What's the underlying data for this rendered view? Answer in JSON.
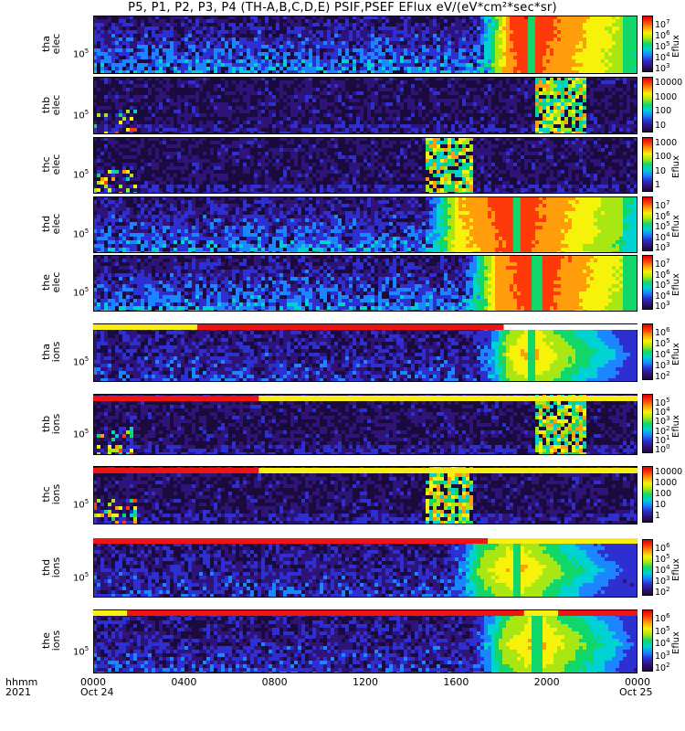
{
  "title": "P5, P1, P2, P3, P4 (TH-A,B,C,D,E) PSIF,PSEF EFlux eV/(eV*cm²*sec*sr)",
  "chart_data": {
    "type": "heatmap",
    "x_axis": {
      "label_row1": "hhmm",
      "label_row2": "2021",
      "ticks": [
        "0000",
        "0400",
        "0800",
        "1200",
        "1600",
        "2000",
        "0000"
      ],
      "dates": [
        "Oct 24",
        "Oct 25"
      ],
      "range_hours": [
        0,
        24
      ]
    },
    "colorscale": [
      "#1b0a3d",
      "#2e1478",
      "#2d2fd0",
      "#1a86ff",
      "#00d2d2",
      "#11d66a",
      "#a8e614",
      "#f7f20a",
      "#ff9d0a",
      "#ff3a0a",
      "#d80000"
    ],
    "panels": [
      {
        "probe": "tha",
        "species": "elec",
        "ytick": "10",
        "ytick_exp": "5",
        "cbar_unit": "Eflux",
        "cbar_ticks": [
          {
            "b": "10",
            "e": "7"
          },
          {
            "b": "10",
            "e": "6"
          },
          {
            "b": "10",
            "e": "5"
          },
          {
            "b": "10",
            "e": "4"
          },
          {
            "b": "10",
            "e": "3"
          }
        ],
        "pattern": "smooth",
        "onset": 16.8,
        "spike": 19.2
      },
      {
        "probe": "thb",
        "species": "elec",
        "ytick": "10",
        "ytick_exp": "5",
        "cbar_unit": "",
        "cbar_ticks": [
          {
            "b": "10000",
            "e": ""
          },
          {
            "b": "1000",
            "e": ""
          },
          {
            "b": "100",
            "e": ""
          },
          {
            "b": "10",
            "e": ""
          }
        ],
        "pattern": "sparse",
        "box_start": 19.4,
        "box_end": 21.6
      },
      {
        "probe": "thc",
        "species": "elec",
        "ytick": "10",
        "ytick_exp": "5",
        "cbar_unit": "Eflux",
        "cbar_ticks": [
          {
            "b": "1000",
            "e": ""
          },
          {
            "b": "100",
            "e": ""
          },
          {
            "b": "10",
            "e": ""
          },
          {
            "b": "1",
            "e": ""
          }
        ],
        "pattern": "sparse",
        "box_start": 14.6,
        "box_end": 16.6
      },
      {
        "probe": "thd",
        "species": "elec",
        "ytick": "10",
        "ytick_exp": "5",
        "cbar_unit": "Eflux",
        "cbar_ticks": [
          {
            "b": "10",
            "e": "7"
          },
          {
            "b": "10",
            "e": "6"
          },
          {
            "b": "10",
            "e": "5"
          },
          {
            "b": "10",
            "e": "4"
          },
          {
            "b": "10",
            "e": "3"
          }
        ],
        "pattern": "smooth",
        "onset": 14.5,
        "spike": 18.6
      },
      {
        "probe": "the",
        "species": "elec",
        "ytick": "10",
        "ytick_exp": "5",
        "cbar_unit": "Eflux",
        "cbar_ticks": [
          {
            "b": "10",
            "e": "7"
          },
          {
            "b": "10",
            "e": "6"
          },
          {
            "b": "10",
            "e": "5"
          },
          {
            "b": "10",
            "e": "4"
          },
          {
            "b": "10",
            "e": "3"
          }
        ],
        "pattern": "smooth",
        "onset": 16.2,
        "spike": 19.5
      },
      {
        "probe": "tha",
        "species": "ions",
        "ytick": "10",
        "ytick_exp": "5",
        "cbar_unit": "Eflux",
        "cbar_ticks": [
          {
            "b": "10",
            "e": "6"
          },
          {
            "b": "10",
            "e": "5"
          },
          {
            "b": "10",
            "e": "4"
          },
          {
            "b": "10",
            "e": "3"
          },
          {
            "b": "10",
            "e": "2"
          }
        ],
        "pattern": "ion",
        "onset": 16.8,
        "spike": 19.2
      },
      {
        "probe": "thb",
        "species": "ions",
        "ytick": "10",
        "ytick_exp": "5",
        "cbar_unit": "Eflux",
        "cbar_ticks": [
          {
            "b": "10",
            "e": "5"
          },
          {
            "b": "10",
            "e": "4"
          },
          {
            "b": "10",
            "e": "3"
          },
          {
            "b": "10",
            "e": "2"
          },
          {
            "b": "10",
            "e": "1"
          },
          {
            "b": "10",
            "e": "0"
          }
        ],
        "pattern": "sparse",
        "box_start": 19.4,
        "box_end": 21.6
      },
      {
        "probe": "thc",
        "species": "ions",
        "ytick": "10",
        "ytick_exp": "5",
        "cbar_unit": "",
        "cbar_ticks": [
          {
            "b": "10000",
            "e": ""
          },
          {
            "b": "1000",
            "e": ""
          },
          {
            "b": "100",
            "e": ""
          },
          {
            "b": "10",
            "e": ""
          },
          {
            "b": "1",
            "e": ""
          }
        ],
        "pattern": "sparse",
        "box_start": 14.6,
        "box_end": 16.6
      },
      {
        "probe": "thd",
        "species": "ions",
        "ytick": "10",
        "ytick_exp": "5",
        "cbar_unit": "Eflux",
        "cbar_ticks": [
          {
            "b": "10",
            "e": "6"
          },
          {
            "b": "10",
            "e": "5"
          },
          {
            "b": "10",
            "e": "4"
          },
          {
            "b": "10",
            "e": "3"
          },
          {
            "b": "10",
            "e": "2"
          }
        ],
        "pattern": "ion",
        "onset": 15.5,
        "spike": 18.6
      },
      {
        "probe": "the",
        "species": "ions",
        "ytick": "10",
        "ytick_exp": "5",
        "cbar_unit": "Eflux",
        "cbar_ticks": [
          {
            "b": "10",
            "e": "6"
          },
          {
            "b": "10",
            "e": "5"
          },
          {
            "b": "10",
            "e": "4"
          },
          {
            "b": "10",
            "e": "3"
          },
          {
            "b": "10",
            "e": "2"
          }
        ],
        "pattern": "ion",
        "onset": 16.5,
        "spike": 19.5
      }
    ],
    "mode_bars": [
      {
        "after_panel": 5,
        "segments": [
          {
            "start": 0,
            "end": 4.6,
            "color": "#f8ee13"
          },
          {
            "start": 4.6,
            "end": 18.1,
            "color": "#ee1414"
          },
          {
            "start": 18.1,
            "end": 24,
            "color": "#ffffff"
          }
        ]
      },
      {
        "after_panel": 6,
        "segments": [
          {
            "start": 0,
            "end": 7.3,
            "color": "#ee1414"
          },
          {
            "start": 7.3,
            "end": 24,
            "color": "#f8ee13"
          }
        ]
      },
      {
        "after_panel": 7,
        "segments": [
          {
            "start": 0,
            "end": 7.3,
            "color": "#ee1414"
          },
          {
            "start": 7.3,
            "end": 24,
            "color": "#f8ee13"
          }
        ]
      },
      {
        "after_panel": 8,
        "segments": [
          {
            "start": 0,
            "end": 17.4,
            "color": "#ee1414"
          },
          {
            "start": 17.4,
            "end": 24,
            "color": "#f8ee13"
          }
        ]
      },
      {
        "after_panel": 9,
        "segments": [
          {
            "start": 0,
            "end": 1.5,
            "color": "#f8ee13"
          },
          {
            "start": 1.5,
            "end": 19.0,
            "color": "#ee1414"
          },
          {
            "start": 19.0,
            "end": 20.5,
            "color": "#f8ee13"
          },
          {
            "start": 20.5,
            "end": 24,
            "color": "#ee1414"
          }
        ]
      }
    ]
  }
}
